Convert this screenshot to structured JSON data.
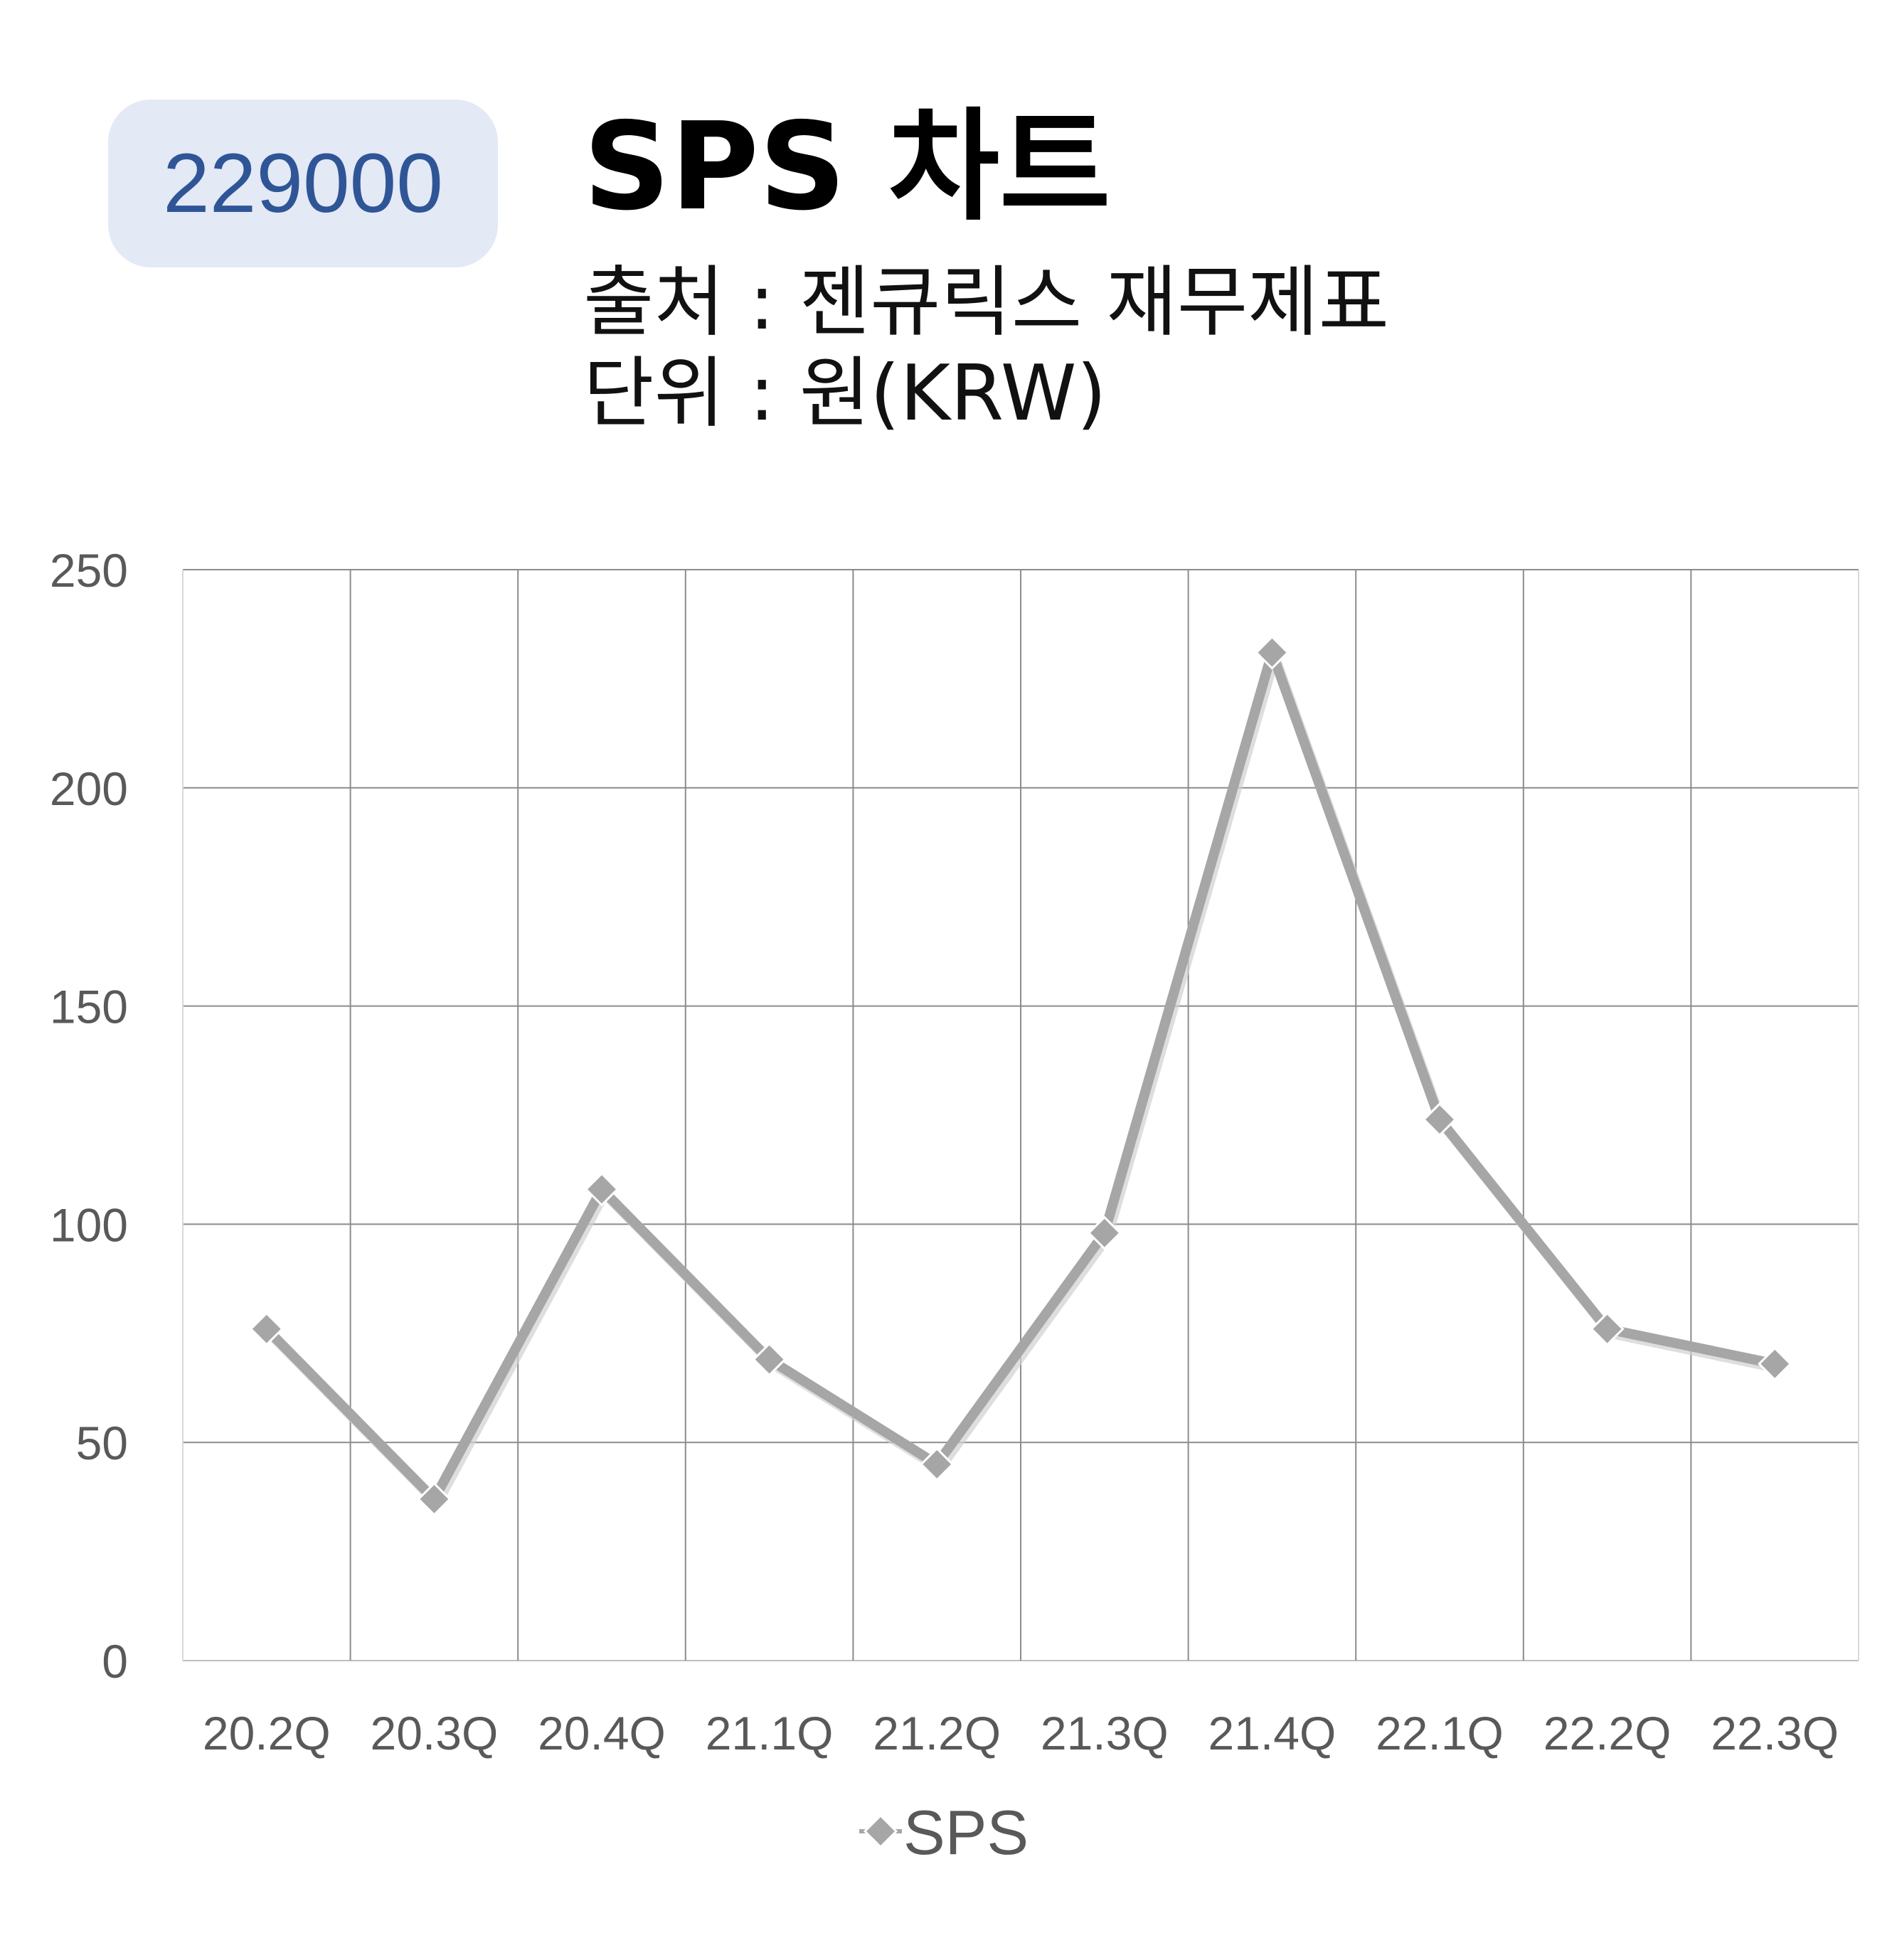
{
  "header": {
    "code": "229000",
    "title": "SPS 차트",
    "source": "출처 : 젠큐릭스 재무제표",
    "unit": "단위 : 원(KRW)"
  },
  "chart_data": {
    "type": "line",
    "title": "SPS 차트",
    "categories": [
      "20.2Q",
      "20.3Q",
      "20.4Q",
      "21.1Q",
      "21.2Q",
      "21.3Q",
      "21.4Q",
      "22.1Q",
      "22.2Q",
      "22.3Q"
    ],
    "series": [
      {
        "name": "SPS",
        "values": [
          76,
          37,
          108,
          69,
          45,
          98,
          231,
          124,
          76,
          68
        ],
        "color": "#a6a6a6",
        "marker": "diamond"
      }
    ],
    "ylim": [
      0,
      250
    ],
    "yticks": [
      0,
      50,
      100,
      150,
      200,
      250
    ],
    "grid": true,
    "legend": "bottom",
    "colors": {
      "grid": "#8c8c8c",
      "line": "#a6a6a6",
      "tick_text": "#595959"
    }
  }
}
